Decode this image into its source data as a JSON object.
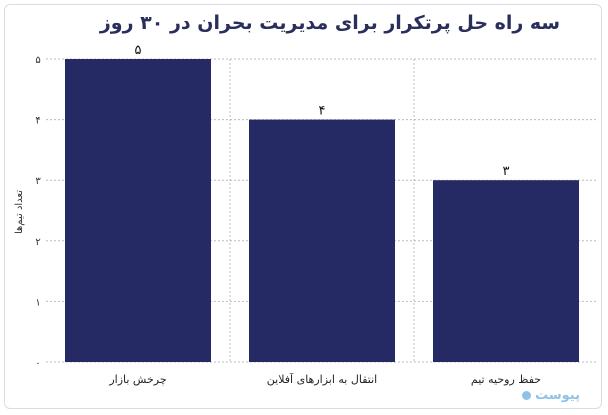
{
  "chart_data": {
    "type": "bar",
    "title": "سه راه حل پرتکرار برای مدیریت بحران در ۳۰ روز",
    "categories": [
      "چرخش بازار",
      "انتقال به ابزارهای آفلاین",
      "حفظ روحیه تیم"
    ],
    "values": [
      5,
      4,
      3
    ],
    "value_labels": [
      "۵",
      "۴",
      "۳"
    ],
    "ylabel": "تعداد تیم‌ها",
    "ylim": [
      0,
      5
    ],
    "yticks": [
      0,
      1,
      2,
      3,
      4,
      5
    ],
    "ytick_labels": [
      "۰",
      "۱",
      "۲",
      "۳",
      "۴",
      "۵"
    ],
    "grid": true,
    "bar_color": "#262a64",
    "grid_color": "#b8bcc4"
  },
  "logo": {
    "text": "پیوست"
  }
}
